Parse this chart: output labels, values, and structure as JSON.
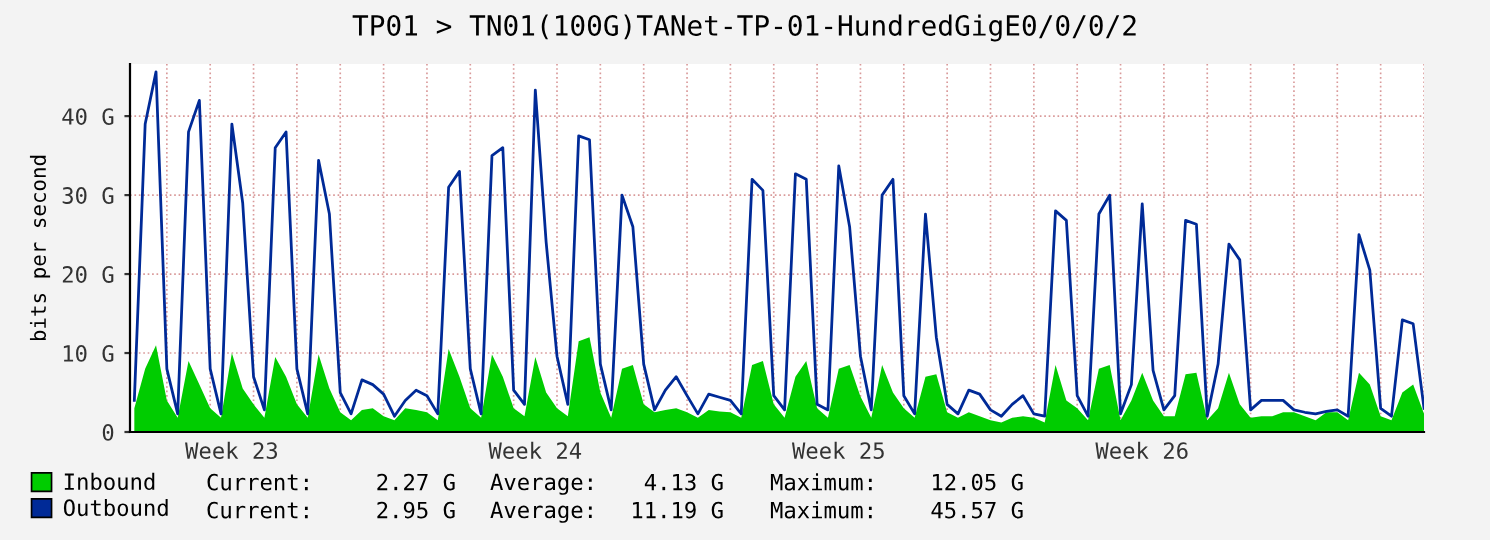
{
  "chart_data": {
    "type": "area",
    "title": "TP01 > TN01(100G)TANet-TP-01-HundredGigE0/0/0/2",
    "ylabel": "bits per second",
    "categories": [
      null,
      null,
      null,
      null,
      null,
      null,
      null,
      null,
      null,
      "Week 23",
      null,
      null,
      null,
      null,
      null,
      null,
      null,
      null,
      null,
      null,
      null,
      null,
      null,
      null,
      null,
      null,
      null,
      null,
      null,
      null,
      null,
      null,
      null,
      null,
      null,
      null,
      null,
      "Week 24",
      null,
      null,
      null,
      null,
      null,
      null,
      null,
      null,
      null,
      null,
      null,
      null,
      null,
      null,
      null,
      null,
      null,
      null,
      null,
      null,
      null,
      null,
      null,
      null,
      null,
      null,
      null,
      "Week 25",
      null,
      null,
      null,
      null,
      null,
      null,
      null,
      null,
      null,
      null,
      null,
      null,
      null,
      null,
      null,
      null,
      null,
      null,
      null,
      null,
      null,
      null,
      null,
      null,
      null,
      null,
      null,
      "Week 26",
      null,
      null,
      null,
      null,
      null,
      null,
      null,
      null,
      null,
      null,
      null,
      null,
      null,
      null,
      null,
      null,
      null,
      null,
      null,
      null,
      null,
      null,
      null,
      null,
      null,
      null
    ],
    "ylim": [
      0,
      46.6
    ],
    "yticks": [
      0,
      {
        "value": 10,
        "label": "10 G"
      },
      {
        "value": 20,
        "label": "20 G"
      },
      {
        "value": 30,
        "label": "30 G"
      },
      {
        "value": 40,
        "label": "40 G"
      }
    ],
    "grid": true,
    "legend": "bottom left",
    "series": [
      {
        "name": "Inbound",
        "color": "#00cc00",
        "values": [
          3,
          8,
          11,
          4,
          1.8,
          9,
          6,
          3,
          1.8,
          10,
          5.5,
          3.5,
          1.8,
          9.5,
          7,
          3.5,
          1.8,
          9.8,
          5.5,
          2.5,
          1.5,
          2.8,
          3,
          2,
          1.5,
          3,
          2.8,
          2.5,
          1.5,
          10.5,
          7,
          3,
          1.8,
          9.8,
          7,
          3,
          2,
          9.5,
          5,
          3,
          2,
          11.5,
          12,
          5,
          1.8,
          8,
          8.5,
          3.5,
          2.5,
          2.8,
          3,
          2.5,
          1.8,
          2.8,
          2.6,
          2.5,
          1.8,
          8.5,
          9,
          3.5,
          1.8,
          7,
          9,
          3,
          1.8,
          8,
          8.5,
          4.5,
          1.8,
          8.5,
          5,
          3,
          1.8,
          7,
          7.3,
          2.5,
          1.8,
          2.5,
          2,
          1.5,
          1.2,
          1.8,
          2,
          1.8,
          1.2,
          8.5,
          4,
          3,
          1.5,
          8,
          8.5,
          1.5,
          4,
          7.5,
          4,
          2,
          2,
          7.3,
          7.5,
          1.5,
          3,
          7.5,
          3.5,
          1.8,
          2,
          2,
          2.5,
          2.5,
          2,
          1.5,
          2.5,
          2.5,
          1.5,
          7.5,
          6,
          2,
          1.5,
          5,
          6,
          2.3
        ]
      },
      {
        "name": "Outbound",
        "type": "line",
        "color": "#002a97",
        "values": [
          4,
          39,
          45.6,
          8,
          2.3,
          38,
          42,
          8,
          2.3,
          39,
          29,
          7,
          2.8,
          36,
          38,
          8,
          2.3,
          34.4,
          27.6,
          5,
          2.3,
          6.6,
          6,
          4.8,
          2,
          4,
          5.3,
          4.6,
          2.3,
          31,
          33,
          8,
          2.3,
          35,
          36,
          5.3,
          3.5,
          43.3,
          24,
          9.6,
          3.5,
          37.5,
          37,
          8.6,
          2.8,
          30,
          26,
          8.6,
          2.8,
          5.3,
          7,
          4.6,
          2.3,
          4.8,
          4.4,
          4,
          2.3,
          32,
          30.6,
          4.6,
          2.8,
          32.7,
          32,
          3.5,
          2.8,
          33.7,
          26,
          9.6,
          2.8,
          30,
          32,
          4.6,
          2.3,
          27.6,
          12,
          3.5,
          2.3,
          5.3,
          4.8,
          2.8,
          2,
          3.5,
          4.6,
          2.3,
          2,
          28,
          26.8,
          4.6,
          2,
          27.6,
          30,
          2.3,
          6,
          28.9,
          7.8,
          2.8,
          4.6,
          26.8,
          26.3,
          2,
          8.6,
          23.8,
          21.8,
          2.8,
          4,
          4,
          4,
          2.8,
          2.5,
          2.3,
          2.6,
          2.8,
          2,
          25,
          20.5,
          3,
          2,
          14.2,
          13.7,
          3
        ]
      }
    ],
    "annotations": [
      "Current:",
      "2.27 G",
      "Average:",
      "4.13 G",
      "Maximum:",
      "12.05 G",
      "Current:",
      "2.95 G",
      "Average:",
      "11.19 G",
      "Maximum:",
      "45.57 G"
    ]
  }
}
